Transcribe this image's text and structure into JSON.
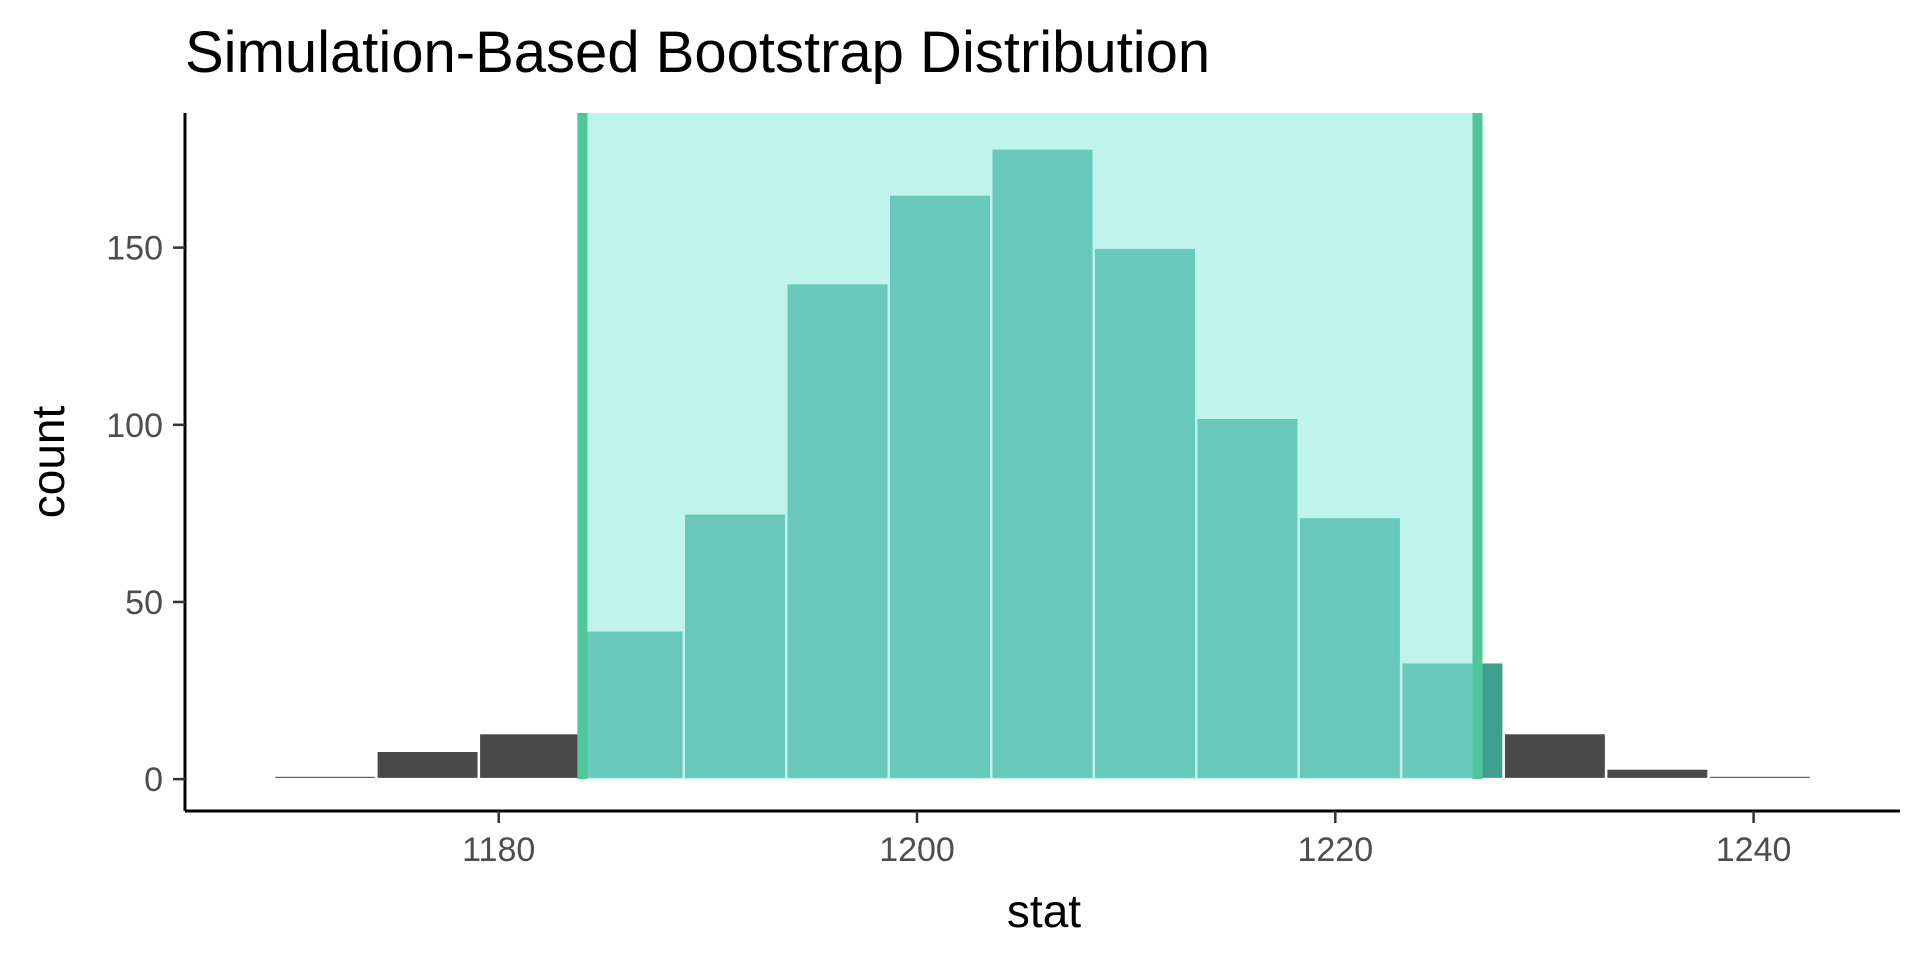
{
  "chart_data": {
    "type": "bar",
    "title": "Simulation-Based Bootstrap Distribution",
    "xlabel": "stat",
    "ylabel": "count",
    "xlim": [
      1165,
      1247
    ],
    "ylim": [
      -9,
      188
    ],
    "x_ticks": [
      1180,
      1200,
      1220,
      1240
    ],
    "y_ticks": [
      0,
      50,
      100,
      150
    ],
    "x_tick_labels": [
      "1180",
      "1200",
      "1220",
      "1240"
    ],
    "y_tick_labels": [
      "0",
      "50",
      "100",
      "150"
    ],
    "bin_width": 4.9,
    "bin_centers": [
      1171.7,
      1176.6,
      1181.5,
      1186.4,
      1191.3,
      1196.2,
      1201.1,
      1206.0,
      1210.9,
      1215.8,
      1220.7,
      1225.6,
      1230.5,
      1235.4,
      1240.3
    ],
    "counts": [
      1,
      8,
      13,
      42,
      75,
      140,
      165,
      178,
      150,
      102,
      74,
      33,
      13,
      3,
      1
    ],
    "confidence_interval": [
      1184.0,
      1226.8
    ],
    "grid": false,
    "legend": "none",
    "colors": {
      "bar": "#4a4a4a",
      "bar_in_interval": "#3fa090",
      "bar_edge": "#ffffff",
      "shade": "#8ae9db",
      "ci_line": "#4fc79a",
      "axis": "#000000",
      "tick_text": "#4d4d4d"
    }
  }
}
